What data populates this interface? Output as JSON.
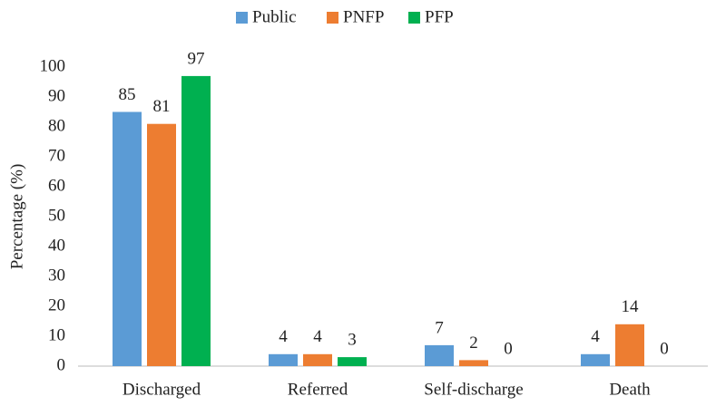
{
  "chart_data": {
    "type": "bar",
    "y_label": "Percentage (%)",
    "categories": [
      "Discharged",
      "Referred",
      "Self-discharge",
      "Death"
    ],
    "series": [
      {
        "name": "Public",
        "color": "#5b9bd5",
        "values": [
          85,
          4,
          7,
          4
        ]
      },
      {
        "name": "PNFP",
        "color": "#ed7d31",
        "values": [
          81,
          4,
          2,
          14
        ]
      },
      {
        "name": "PFP",
        "color": "#00b050",
        "values": [
          97,
          3,
          0,
          0
        ]
      }
    ],
    "ylim": [
      0,
      100
    ],
    "yticks": [
      0,
      10,
      20,
      30,
      40,
      50,
      60,
      70,
      80,
      90,
      100
    ],
    "grid": false,
    "legend": "top"
  }
}
